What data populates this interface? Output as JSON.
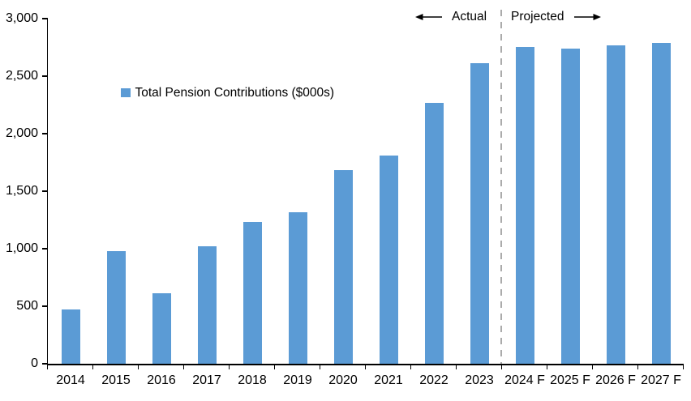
{
  "chart_data": {
    "type": "bar",
    "title": "",
    "xlabel": "",
    "ylabel": "",
    "series_name": "Total Pension Contributions ($000s)",
    "categories": [
      "2014",
      "2015",
      "2016",
      "2017",
      "2018",
      "2019",
      "2020",
      "2021",
      "2022",
      "2023",
      "2024 F",
      "2025 F",
      "2026 F",
      "2027 F"
    ],
    "values": [
      470,
      980,
      610,
      1020,
      1230,
      1320,
      1680,
      1810,
      2270,
      2610,
      2750,
      2740,
      2765,
      2790
    ],
    "ylim": [
      0,
      3000
    ],
    "yticks": [
      0,
      500,
      1000,
      1500,
      2000,
      2500,
      3000
    ],
    "ytick_labels": [
      "0",
      "500",
      "1,000",
      "1,500",
      "2,000",
      "2,500",
      "3,000"
    ],
    "bar_color": "#5B9BD5",
    "axis_color": "#000000",
    "grid": false,
    "legend_position": "inside-upper-left",
    "annotations": {
      "actual": "Actual",
      "projected": "Projected",
      "divider_after_category": "2023",
      "divider_color": "#ABABAB"
    }
  }
}
